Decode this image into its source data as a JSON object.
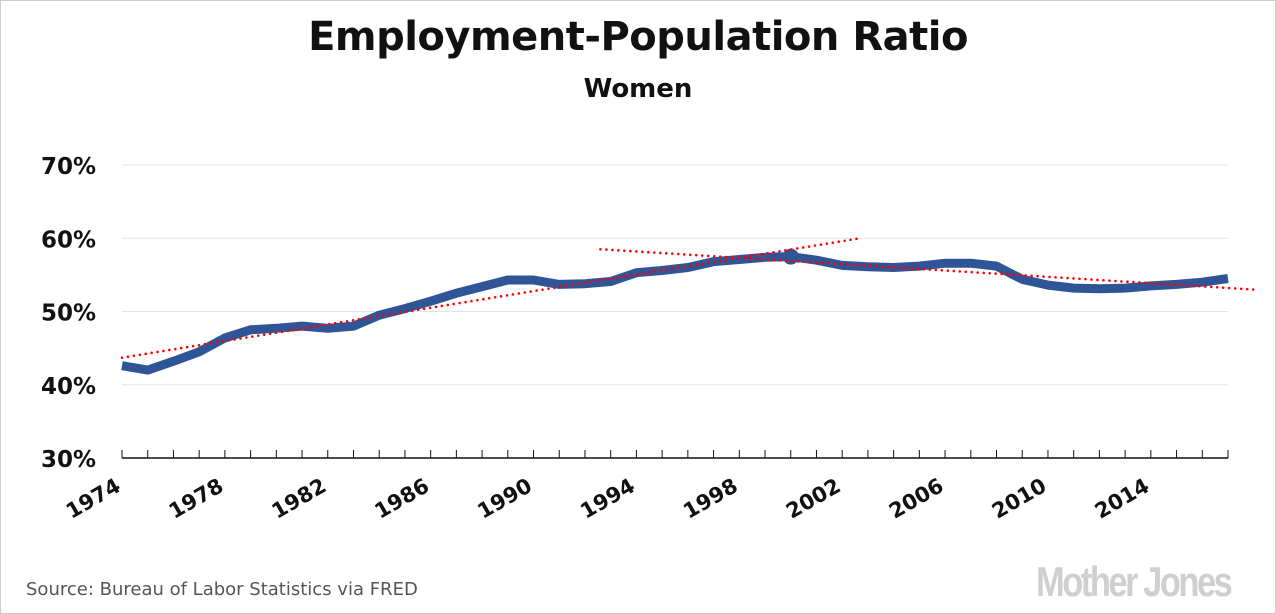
{
  "chart_data": {
    "type": "line",
    "title": "Employment-Population Ratio",
    "subtitle": "Women",
    "xlabel": "",
    "ylabel": "",
    "x": [
      1974,
      1975,
      1976,
      1977,
      1978,
      1979,
      1980,
      1981,
      1982,
      1983,
      1984,
      1985,
      1986,
      1987,
      1988,
      1989,
      1990,
      1991,
      1992,
      1993,
      1994,
      1995,
      1996,
      1997,
      1998,
      1999,
      2000,
      2001,
      2002,
      2003,
      2004,
      2005,
      2006,
      2007,
      2008,
      2009,
      2010,
      2011,
      2012,
      2013,
      2014,
      2015,
      2016,
      2017
    ],
    "series": [
      {
        "name": "Employment-Population Ratio, Women",
        "color": "#2f5597",
        "values": [
          42.6,
          42.0,
          43.2,
          44.5,
          46.4,
          47.5,
          47.7,
          48.0,
          47.7,
          48.0,
          49.5,
          50.4,
          51.4,
          52.5,
          53.4,
          54.3,
          54.3,
          53.7,
          53.8,
          54.1,
          55.3,
          55.6,
          56.0,
          56.8,
          57.1,
          57.4,
          57.5,
          57.0,
          56.3,
          56.1,
          56.0,
          56.2,
          56.6,
          56.6,
          56.2,
          54.4,
          53.6,
          53.2,
          53.1,
          53.2,
          53.5,
          53.7,
          54.0,
          54.5
        ]
      }
    ],
    "highlight_point": {
      "x": 2000,
      "y": 57.5,
      "color": "#2f5597"
    },
    "trendlines": [
      {
        "name": "trend-1974-2000",
        "color": "#ff0000",
        "style": "dotted",
        "from": {
          "x": 1974,
          "y": 43.7
        },
        "to": {
          "x": 2002.7,
          "y": 60.0
        }
      },
      {
        "name": "trend-2000-2017",
        "color": "#ff0000",
        "style": "dotted",
        "from": {
          "x": 1992.6,
          "y": 58.5
        },
        "to": {
          "x": 2018,
          "y": 53.0
        }
      }
    ],
    "ylim": [
      30,
      70
    ],
    "yticks": [
      30,
      40,
      50,
      60,
      70
    ],
    "ytick_labels": [
      "30%",
      "40%",
      "50%",
      "60%",
      "70%"
    ],
    "xlim": [
      1974,
      2017
    ],
    "xtick_labels": [
      "1974",
      "1978",
      "1982",
      "1986",
      "1990",
      "1994",
      "1998",
      "2002",
      "2006",
      "2010",
      "2014"
    ],
    "xtick_label_values": [
      1974,
      1978,
      1982,
      1986,
      1990,
      1994,
      1998,
      2002,
      2006,
      2010,
      2014
    ],
    "grid": true,
    "legend": "none"
  },
  "footer": {
    "source": "Source: Bureau of Labor Statistics via FRED",
    "logo": "Mother Jones"
  },
  "colors": {
    "line": "#2f5597",
    "trend": "#ff0000",
    "grid": "#e3e3e3",
    "axis": "#111111"
  }
}
